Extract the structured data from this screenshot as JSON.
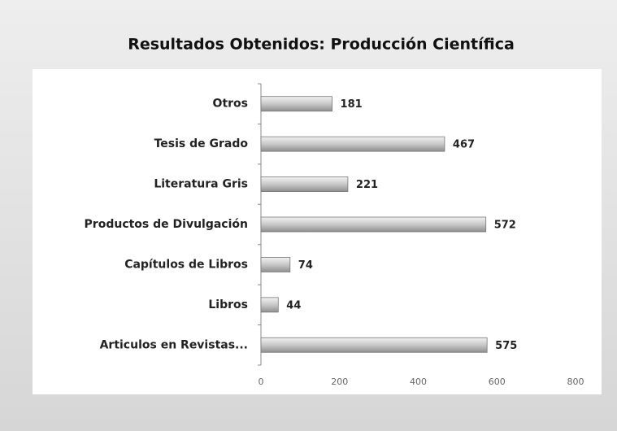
{
  "chart_data": {
    "type": "bar",
    "orientation": "horizontal",
    "title": "Resultados Obtenidos: Producción Científica",
    "categories": [
      "Otros",
      "Tesis de Grado",
      "Literatura Gris",
      "Productos de Divulgación",
      "Capítulos de Libros",
      "Libros",
      "Articulos en Revistas..."
    ],
    "values": [
      181,
      467,
      221,
      572,
      74,
      44,
      575
    ],
    "color": "#c8c8c8",
    "xlim": [
      0,
      800
    ],
    "xticks": [
      0,
      200,
      400,
      600,
      800
    ],
    "grid": false
  }
}
